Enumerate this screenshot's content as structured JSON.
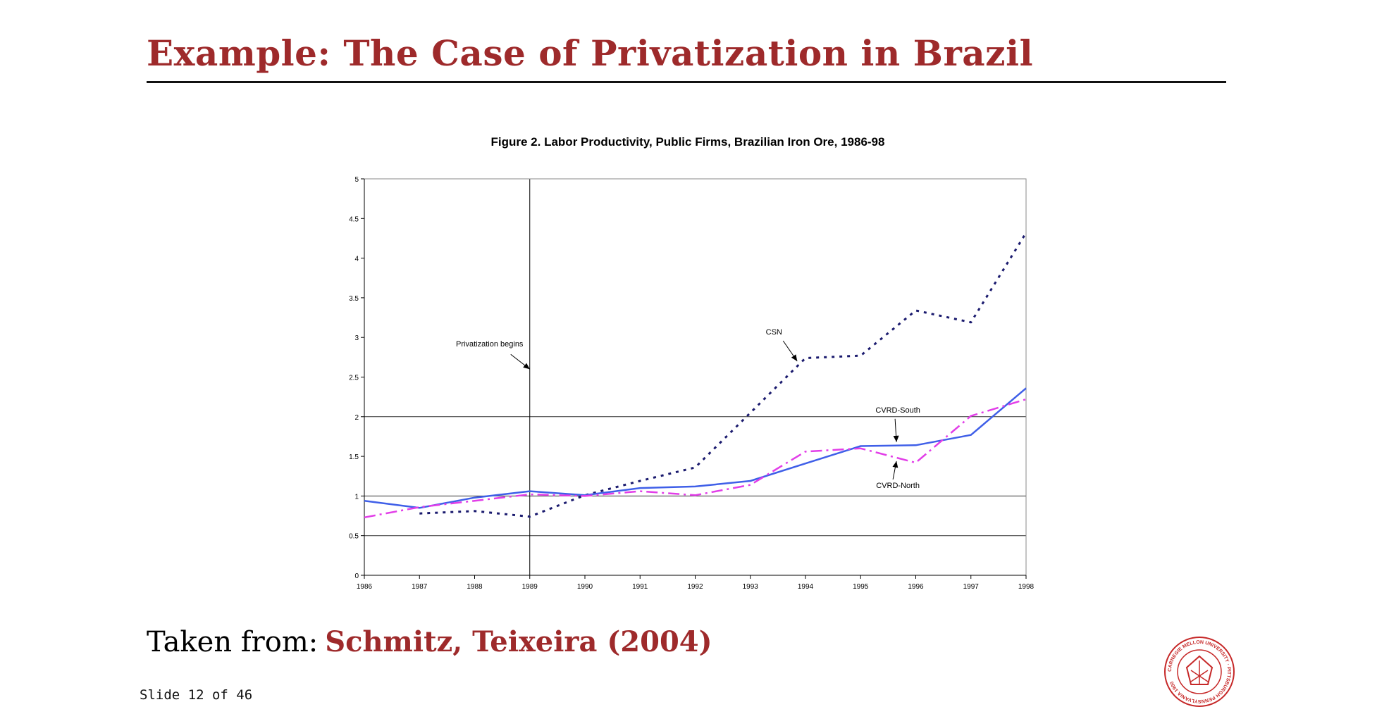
{
  "slide": {
    "title": "Example: The Case of Privatization in Brazil",
    "citation_prefix": "Taken from:",
    "citation_source": "Schmitz, Teixeira (2004)",
    "slide_number": "Slide 12 of 46",
    "logo_text": "CARNEGIE MELLON UNIVERSITY · PITTSBURGH PENNSYLVANIA 1900"
  },
  "colors": {
    "accent": "#9e2a2b",
    "csn": "#1a1a6e",
    "cvrd_south": "#3f5fe8",
    "cvrd_north": "#e23ee8"
  },
  "chart_data": {
    "type": "line",
    "title": "Figure 2. Labor Productivity, Public Firms, Brazilian Iron Ore, 1986-98",
    "xlabel": "",
    "ylabel": "",
    "x": [
      1986,
      1987,
      1988,
      1989,
      1990,
      1991,
      1992,
      1993,
      1994,
      1995,
      1996,
      1997,
      1998
    ],
    "xlim": [
      1986,
      1998
    ],
    "ylim": [
      0,
      5
    ],
    "yticks": [
      "0",
      "0.5",
      "1",
      "1.5",
      "2",
      "2.5",
      "3",
      "3.5",
      "4",
      "4.5",
      "5"
    ],
    "grid": "horizontal at 0.5, 1, 2",
    "series": [
      {
        "name": "CSN",
        "style": "dotted",
        "color": "#1a1a6e",
        "values": [
          null,
          0.78,
          0.81,
          0.74,
          1.01,
          1.19,
          1.36,
          2.05,
          2.74,
          2.77,
          3.34,
          3.19,
          4.32
        ]
      },
      {
        "name": "CVRD-South",
        "style": "solid",
        "color": "#3f5fe8",
        "values": [
          0.94,
          0.85,
          0.98,
          1.06,
          1.01,
          1.1,
          1.12,
          1.19,
          1.41,
          1.63,
          1.64,
          1.77,
          2.36
        ]
      },
      {
        "name": "CVRD-North",
        "style": "dash-dot",
        "color": "#e23ee8",
        "values": [
          0.73,
          0.86,
          0.94,
          1.02,
          1.0,
          1.06,
          1.01,
          1.14,
          1.56,
          1.6,
          1.42,
          2.01,
          2.22
        ]
      }
    ],
    "event_line": {
      "x": 1989,
      "label": "Privatization begins"
    },
    "annotations": [
      {
        "text": "Privatization begins",
        "points_to": [
          1989,
          2.6
        ]
      },
      {
        "text": "CSN",
        "points_to": [
          1993.85,
          2.7
        ]
      },
      {
        "text": "CVRD-South",
        "points_to": [
          1995.65,
          1.68
        ]
      },
      {
        "text": "CVRD-North",
        "points_to": [
          1995.65,
          1.44
        ]
      }
    ]
  }
}
